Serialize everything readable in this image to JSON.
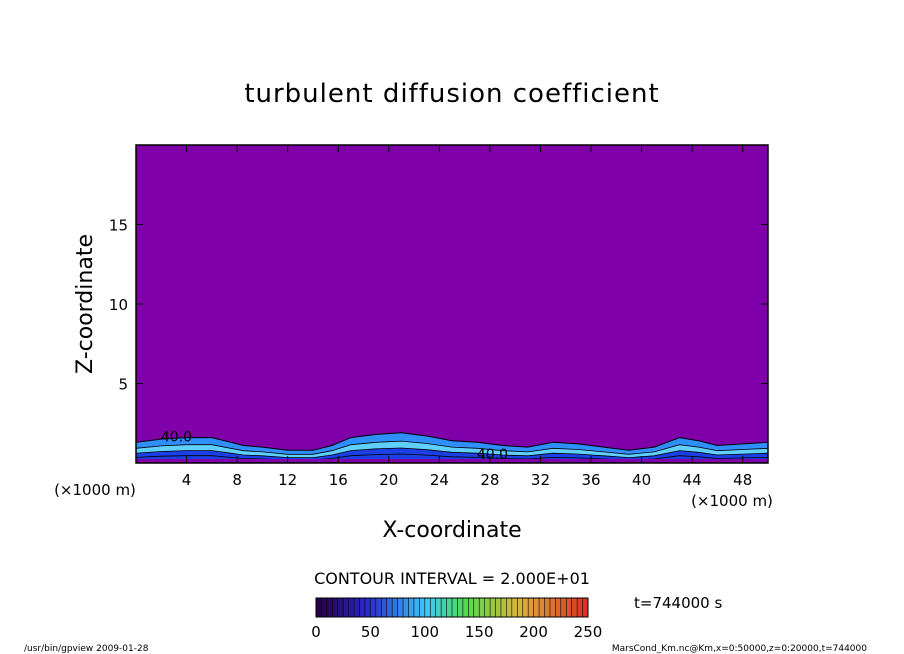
{
  "chart_data": {
    "type": "heatmap",
    "title": "turbulent diffusion coefficient",
    "xlabel": "X-coordinate",
    "ylabel": "Z-coordinate",
    "x_unit": "(×1000 m)",
    "y_unit": "(×1000 m)",
    "xlim": [
      0,
      50
    ],
    "ylim": [
      0,
      20
    ],
    "x_ticks": [
      4,
      8,
      12,
      16,
      20,
      24,
      28,
      32,
      36,
      40,
      44,
      48
    ],
    "y_ticks": [
      5,
      10,
      15
    ],
    "contour_interval_text": "CONTOUR INTERVAL = 2.000E+01",
    "contour_labels": [
      {
        "text": "40.0",
        "x": 3.2,
        "z": 1.6
      },
      {
        "text": "40.0",
        "x": 28.2,
        "z": 0.5
      }
    ],
    "background_value": 0,
    "boundary_layer_top_km": [
      [
        0,
        1.3
      ],
      [
        2,
        1.5
      ],
      [
        4,
        1.6
      ],
      [
        6,
        1.6
      ],
      [
        7.5,
        1.3
      ],
      [
        8.5,
        1.1
      ],
      [
        10,
        1.0
      ],
      [
        12,
        0.8
      ],
      [
        14,
        0.8
      ],
      [
        15.5,
        1.1
      ],
      [
        17,
        1.6
      ],
      [
        19,
        1.8
      ],
      [
        21,
        1.9
      ],
      [
        23,
        1.7
      ],
      [
        25,
        1.4
      ],
      [
        27,
        1.3
      ],
      [
        29,
        1.1
      ],
      [
        31,
        1.0
      ],
      [
        33,
        1.3
      ],
      [
        35,
        1.2
      ],
      [
        37,
        1.0
      ],
      [
        39,
        0.8
      ],
      [
        41,
        1.0
      ],
      [
        43,
        1.6
      ],
      [
        44.5,
        1.4
      ],
      [
        46,
        1.1
      ],
      [
        48,
        1.2
      ],
      [
        50,
        1.3
      ]
    ],
    "colorbar": {
      "min": 0,
      "max": 250,
      "ticks": [
        0,
        50,
        100,
        150,
        200,
        250
      ]
    },
    "time_label": "t=744000 s",
    "footer_left": "/usr/bin/gpview  2009-01-28",
    "footer_right": "MarsCond_Km.nc@Km,x=0:50000,z=0:20000,t=744000"
  },
  "colors": {
    "background_field": "#7f00a8",
    "layer_outer": "#2f8fff",
    "layer_mid": "#1c40e6",
    "layer_inner": "#5fd0ff"
  }
}
